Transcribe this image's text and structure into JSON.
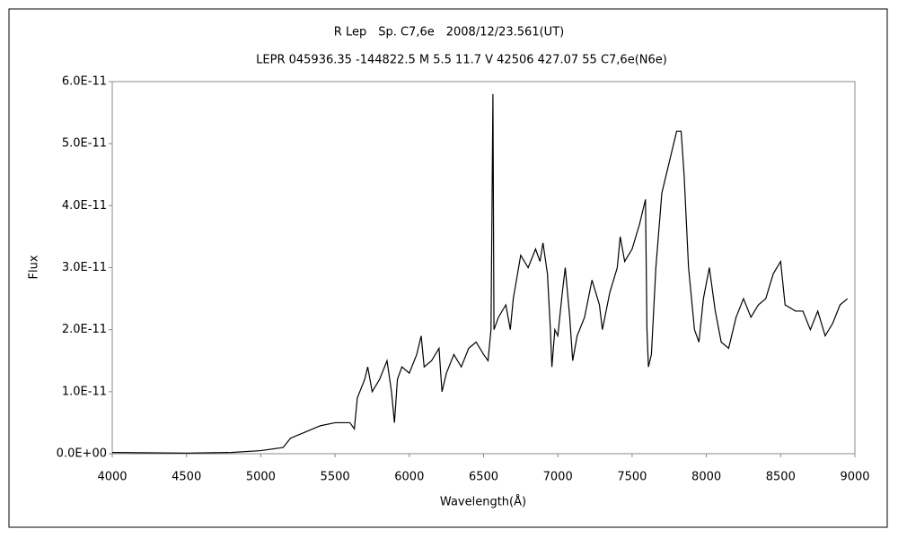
{
  "chart_data": {
    "type": "line",
    "title": "R Lep　Sp. C7,6e　2008/12/23.561(UT)",
    "subtitle": "LEPR 045936.35 -144822.5 M 5.5 11.7 V 42506 427.07 55 C7,6e(N6e)",
    "x_label": "Wavelength(Å)",
    "y_label": "Flux",
    "x": [
      4000,
      4500,
      4800,
      5000,
      5150,
      5200,
      5300,
      5400,
      5500,
      5600,
      5630,
      5650,
      5700,
      5720,
      5750,
      5800,
      5850,
      5880,
      5900,
      5920,
      5950,
      6000,
      6050,
      6080,
      6100,
      6150,
      6200,
      6220,
      6250,
      6300,
      6350,
      6400,
      6450,
      6500,
      6530,
      6550,
      6563,
      6570,
      6600,
      6650,
      6680,
      6700,
      6750,
      6800,
      6850,
      6880,
      6900,
      6930,
      6950,
      6960,
      6980,
      7000,
      7030,
      7050,
      7080,
      7100,
      7130,
      7180,
      7230,
      7280,
      7300,
      7350,
      7400,
      7420,
      7450,
      7500,
      7550,
      7590,
      7600,
      7610,
      7630,
      7660,
      7700,
      7750,
      7800,
      7830,
      7850,
      7880,
      7920,
      7950,
      7980,
      8020,
      8060,
      8100,
      8150,
      8200,
      8250,
      8300,
      8350,
      8400,
      8450,
      8500,
      8530,
      8600,
      8650,
      8700,
      8750,
      8800,
      8850,
      8900,
      8950
    ],
    "series": [
      {
        "name": "Flux",
        "color": "#000000",
        "values": [
          2e-13,
          1e-13,
          2e-13,
          5e-13,
          1e-12,
          2.5e-12,
          3.5e-12,
          4.5e-12,
          5e-12,
          5e-12,
          4e-12,
          9e-12,
          1.2e-11,
          1.4e-11,
          1e-11,
          1.2e-11,
          1.5e-11,
          1e-11,
          5e-12,
          1.2e-11,
          1.4e-11,
          1.3e-11,
          1.6e-11,
          1.9e-11,
          1.4e-11,
          1.5e-11,
          1.7e-11,
          1e-11,
          1.3e-11,
          1.6e-11,
          1.4e-11,
          1.7e-11,
          1.8e-11,
          1.6e-11,
          1.5e-11,
          2e-11,
          5.8e-11,
          2e-11,
          2.2e-11,
          2.4e-11,
          2e-11,
          2.5e-11,
          3.2e-11,
          3e-11,
          3.3e-11,
          3.1e-11,
          3.4e-11,
          2.9e-11,
          2e-11,
          1.4e-11,
          2e-11,
          1.9e-11,
          2.6e-11,
          3e-11,
          2.2e-11,
          1.5e-11,
          1.9e-11,
          2.2e-11,
          2.8e-11,
          2.4e-11,
          2e-11,
          2.6e-11,
          3e-11,
          3.5e-11,
          3.1e-11,
          3.3e-11,
          3.7e-11,
          4.1e-11,
          2e-11,
          1.4e-11,
          1.6e-11,
          3e-11,
          4.2e-11,
          4.7e-11,
          5.2e-11,
          5.2e-11,
          4.5e-11,
          3e-11,
          2e-11,
          1.8e-11,
          2.5e-11,
          3e-11,
          2.3e-11,
          1.8e-11,
          1.7e-11,
          2.2e-11,
          2.5e-11,
          2.2e-11,
          2.4e-11,
          2.5e-11,
          2.9e-11,
          3.1e-11,
          2.4e-11,
          2.3e-11,
          2.3e-11,
          2e-11,
          2.3e-11,
          1.9e-11,
          2.1e-11,
          2.4e-11,
          2.5e-11
        ]
      }
    ],
    "xlim": [
      4000,
      9000
    ],
    "xticks": [
      4000,
      4500,
      5000,
      5500,
      6000,
      6500,
      7000,
      7500,
      8000,
      8500,
      9000
    ],
    "ylim": [
      0,
      6e-11
    ],
    "yticks": [
      {
        "value": 0,
        "label": "0.0E+00"
      },
      {
        "value": 1e-11,
        "label": "1.0E-11"
      },
      {
        "value": 2e-11,
        "label": "2.0E-11"
      },
      {
        "value": 3e-11,
        "label": "3.0E-11"
      },
      {
        "value": 4e-11,
        "label": "4.0E-11"
      },
      {
        "value": 5e-11,
        "label": "5.0E-11"
      },
      {
        "value": 6e-11,
        "label": "6.0E-11"
      }
    ],
    "grid": false
  }
}
